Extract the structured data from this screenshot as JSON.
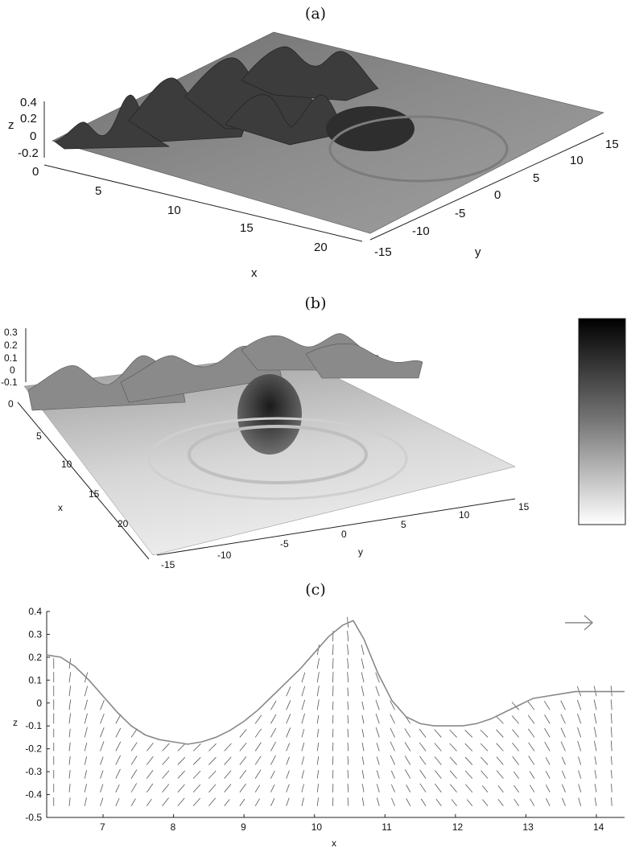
{
  "panels": {
    "a": {
      "label": "(a)"
    },
    "b": {
      "label": "(b)"
    },
    "c": {
      "label": "(c)"
    }
  },
  "chart_data": [
    {
      "type": "surface",
      "panel": "(a)",
      "xlabel": "x",
      "ylabel": "y",
      "zlabel": "z",
      "xlim": [
        0,
        22
      ],
      "ylim": [
        -15,
        15
      ],
      "zlim": [
        -0.2,
        0.4
      ],
      "x_ticks": [
        "0",
        "5",
        "10",
        "15",
        "20"
      ],
      "y_ticks": [
        "-15",
        "-10",
        "-5",
        "0",
        "5",
        "10",
        "15"
      ],
      "z_ticks": [
        "0.4",
        "0.2",
        "0",
        "-0.2"
      ],
      "colormap": "gray",
      "grid": false
    },
    {
      "type": "surface",
      "panel": "(b)",
      "xlabel": "x",
      "ylabel": "y",
      "xlim": [
        0,
        22
      ],
      "ylim": [
        -15,
        15
      ],
      "zlim": [
        -0.1,
        0.3
      ],
      "x_ticks": [
        "0",
        "5",
        "10",
        "15",
        "20"
      ],
      "y_ticks": [
        "-15",
        "-10",
        "-5",
        "0",
        "5",
        "10",
        "15"
      ],
      "z_ticks": [
        "0.3",
        "0.2",
        "0.1",
        "0",
        "-0.1"
      ],
      "colormap": "gray",
      "colorbar": true,
      "grid": false
    },
    {
      "type": "line",
      "panel": "(c)",
      "xlabel": "x",
      "ylabel": "z",
      "xlim": [
        6.2,
        14.4
      ],
      "ylim": [
        -0.5,
        0.4
      ],
      "x_ticks": [
        7,
        8,
        9,
        10,
        11,
        12,
        13,
        14
      ],
      "y_ticks": [
        -0.5,
        -0.4,
        -0.3,
        -0.2,
        -0.1,
        0,
        0.1,
        0.2,
        0.3,
        0.4
      ],
      "series": [
        {
          "x": [
            6.2,
            6.4,
            6.6,
            6.8,
            7.0,
            7.2,
            7.4,
            7.6,
            7.8,
            8.0,
            8.2,
            8.4,
            8.6,
            8.8,
            9.0,
            9.2,
            9.4,
            9.6,
            9.8,
            10.0,
            10.2,
            10.4,
            10.55,
            10.7,
            10.9,
            11.1,
            11.3,
            11.5,
            11.7,
            11.9,
            12.1,
            12.3,
            12.5,
            12.7,
            12.9,
            13.1,
            13.3,
            13.5,
            13.7,
            13.9,
            14.1,
            14.4
          ],
          "y": [
            0.21,
            0.2,
            0.16,
            0.1,
            0.03,
            -0.04,
            -0.1,
            -0.14,
            -0.16,
            -0.17,
            -0.18,
            -0.17,
            -0.15,
            -0.12,
            -0.08,
            -0.03,
            0.03,
            0.09,
            0.15,
            0.22,
            0.29,
            0.34,
            0.36,
            0.28,
            0.13,
            0.01,
            -0.06,
            -0.09,
            -0.1,
            -0.1,
            -0.1,
            -0.09,
            -0.07,
            -0.04,
            -0.01,
            0.02,
            0.03,
            0.04,
            0.05,
            0.05,
            0.05,
            0.05
          ]
        }
      ],
      "vector_field": true,
      "grid": false
    }
  ]
}
